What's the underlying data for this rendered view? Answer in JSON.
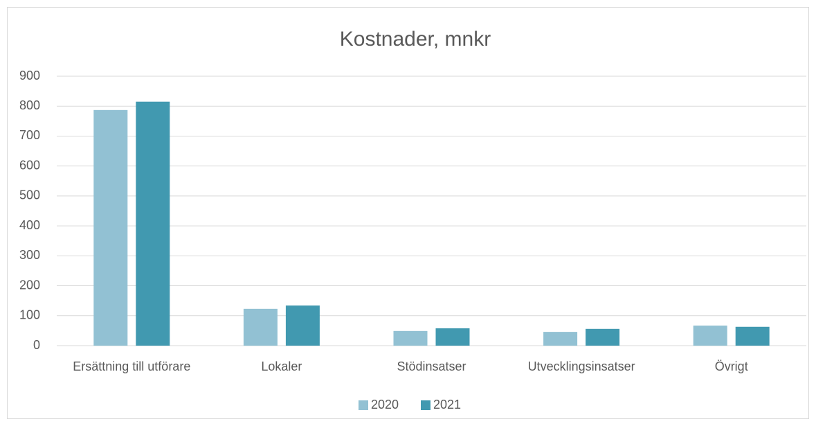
{
  "chart_data": {
    "type": "bar",
    "title": "Kostnader, mnkr",
    "categories": [
      "Ersättning till utförare",
      "Lokaler",
      "Stödinsatser",
      "Utvecklingsinsatser",
      "Övrigt"
    ],
    "series": [
      {
        "name": "2020",
        "color": "#92c1d3",
        "values": [
          787,
          123,
          49,
          46,
          67
        ]
      },
      {
        "name": "2021",
        "color": "#4199b0",
        "values": [
          815,
          134,
          58,
          56,
          63
        ]
      }
    ],
    "ylim": [
      0,
      900
    ],
    "yticks": [
      0,
      100,
      200,
      300,
      400,
      500,
      600,
      700,
      800,
      900
    ],
    "grid": true,
    "legend": "bottom"
  }
}
